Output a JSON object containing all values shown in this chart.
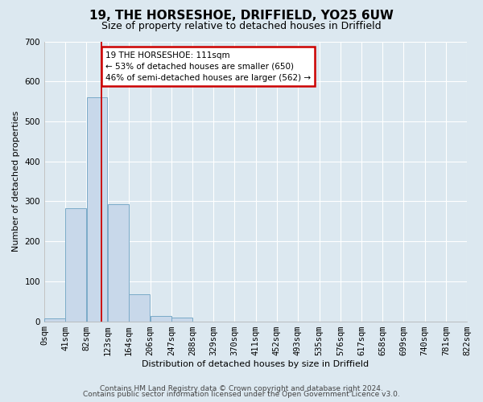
{
  "title": "19, THE HORSESHOE, DRIFFIELD, YO25 6UW",
  "subtitle": "Size of property relative to detached houses in Driffield",
  "xlabel": "Distribution of detached houses by size in Driffield",
  "ylabel": "Number of detached properties",
  "footer_line1": "Contains HM Land Registry data © Crown copyright and database right 2024.",
  "footer_line2": "Contains public sector information licensed under the Open Government Licence v3.0.",
  "bar_left_edges": [
    0,
    41,
    82,
    123,
    164,
    206,
    247,
    288,
    329,
    370,
    411,
    452,
    493,
    535,
    576,
    617,
    658,
    699,
    740,
    781
  ],
  "bar_heights": [
    7,
    282,
    560,
    293,
    68,
    13,
    9,
    0,
    0,
    0,
    0,
    0,
    0,
    0,
    0,
    0,
    0,
    0,
    0,
    0
  ],
  "bin_width": 41,
  "bar_color": "#c8d8ea",
  "bar_edge_color": "#7aaac8",
  "tick_labels": [
    "0sqm",
    "41sqm",
    "82sqm",
    "123sqm",
    "164sqm",
    "206sqm",
    "247sqm",
    "288sqm",
    "329sqm",
    "370sqm",
    "411sqm",
    "452sqm",
    "493sqm",
    "535sqm",
    "576sqm",
    "617sqm",
    "658sqm",
    "699sqm",
    "740sqm",
    "781sqm",
    "822sqm"
  ],
  "ylim": [
    0,
    700
  ],
  "yticks": [
    0,
    100,
    200,
    300,
    400,
    500,
    600,
    700
  ],
  "red_line_x": 111,
  "annotation_line1": "19 THE HORSESHOE: 111sqm",
  "annotation_line2": "← 53% of detached houses are smaller (650)",
  "annotation_line3": "46% of semi-detached houses are larger (562) →",
  "annotation_box_color": "#ffffff",
  "annotation_box_edge": "#cc0000",
  "background_color": "#dce8f0",
  "plot_bg_color": "#dce8f0",
  "grid_color": "#ffffff",
  "title_fontsize": 11,
  "subtitle_fontsize": 9,
  "axis_label_fontsize": 8,
  "tick_fontsize": 7.5,
  "footer_fontsize": 6.5
}
